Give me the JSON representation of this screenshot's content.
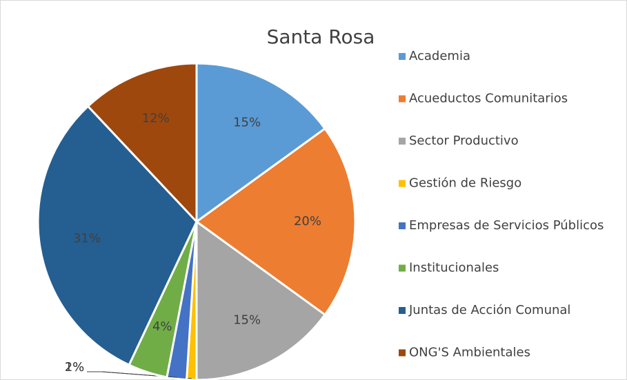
{
  "chart_data": {
    "type": "pie",
    "title": "Santa Rosa",
    "categories": [
      "Academia",
      "Acueductos Comunitarios",
      "Sector Productivo",
      "Gestión de Riesgo",
      "Empresas de Servicios Públicos",
      "Institucionales",
      "Juntas de Acción Comunal",
      "ONG'S Ambientales"
    ],
    "values": [
      15,
      20,
      15,
      1,
      2,
      4,
      31,
      12
    ],
    "value_labels": [
      "15%",
      "20%",
      "15%",
      "1%",
      "2%",
      "4%",
      "31%",
      "12%"
    ],
    "colors": [
      "#5b9bd5",
      "#ed7d31",
      "#a5a5a5",
      "#ffc000",
      "#4472c4",
      "#70ad47",
      "#255e91",
      "#9e480e"
    ],
    "legend": "right"
  }
}
